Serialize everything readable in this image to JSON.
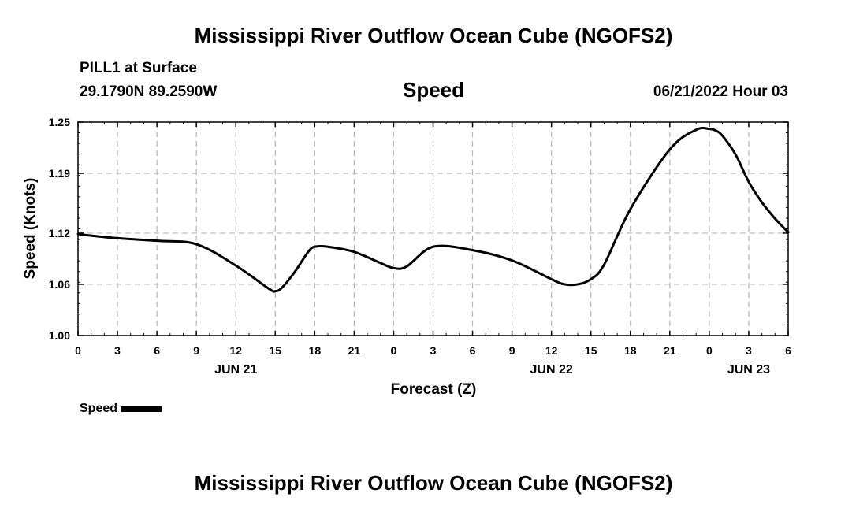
{
  "header": {
    "title": "Mississippi River Outflow Ocean Cube (NGOFS2)",
    "station": "PILL1 at Surface",
    "coords": "29.1790N  89.2590W",
    "variable": "Speed",
    "timestamp": "06/21/2022 Hour 03"
  },
  "footer": {
    "title": "Mississippi River Outflow Ocean Cube (NGOFS2)"
  },
  "legend": {
    "label": "Speed"
  },
  "chart_data": {
    "type": "line",
    "title": "Speed",
    "xlabel": "Forecast (Z)",
    "ylabel": "Speed (Knots)",
    "ylim": [
      1.0,
      1.25
    ],
    "xlim": [
      0,
      54
    ],
    "grid": true,
    "x_unit": "hours since 06/21 00Z",
    "xticks": [
      0,
      3,
      6,
      9,
      12,
      15,
      18,
      21,
      24,
      27,
      30,
      33,
      36,
      39,
      42,
      45,
      48,
      51,
      54
    ],
    "xtick_labels": [
      "0",
      "3",
      "6",
      "9",
      "12",
      "15",
      "18",
      "21",
      "0",
      "3",
      "6",
      "9",
      "12",
      "15",
      "18",
      "21",
      "0",
      "3",
      "6"
    ],
    "yticks": [
      1.0,
      1.06,
      1.12,
      1.19,
      1.25
    ],
    "ytick_labels": [
      "1.00",
      "1.06",
      "1.12",
      "1.19",
      "1.25"
    ],
    "date_labels": [
      {
        "x": 12,
        "label": "JUN 21"
      },
      {
        "x": 36,
        "label": "JUN 22"
      },
      {
        "x": 51,
        "label": "JUN 23"
      }
    ],
    "series": [
      {
        "name": "Speed",
        "color": "#000000",
        "x": [
          0,
          1,
          3,
          6,
          9,
          12,
          14.5,
          15,
          15.5,
          16.5,
          17.5,
          18,
          19,
          21,
          23,
          24,
          25,
          27,
          30,
          33,
          36,
          37,
          38,
          39,
          40,
          42,
          45,
          47,
          48,
          48.5,
          49,
          50,
          51,
          52,
          53,
          54
        ],
        "y": [
          1.119,
          1.117,
          1.114,
          1.111,
          1.107,
          1.082,
          1.055,
          1.052,
          1.056,
          1.075,
          1.098,
          1.104,
          1.104,
          1.098,
          1.085,
          1.079,
          1.081,
          1.104,
          1.1,
          1.088,
          1.066,
          1.06,
          1.06,
          1.066,
          1.083,
          1.148,
          1.218,
          1.241,
          1.242,
          1.24,
          1.234,
          1.212,
          1.18,
          1.156,
          1.137,
          1.121
        ]
      }
    ]
  }
}
